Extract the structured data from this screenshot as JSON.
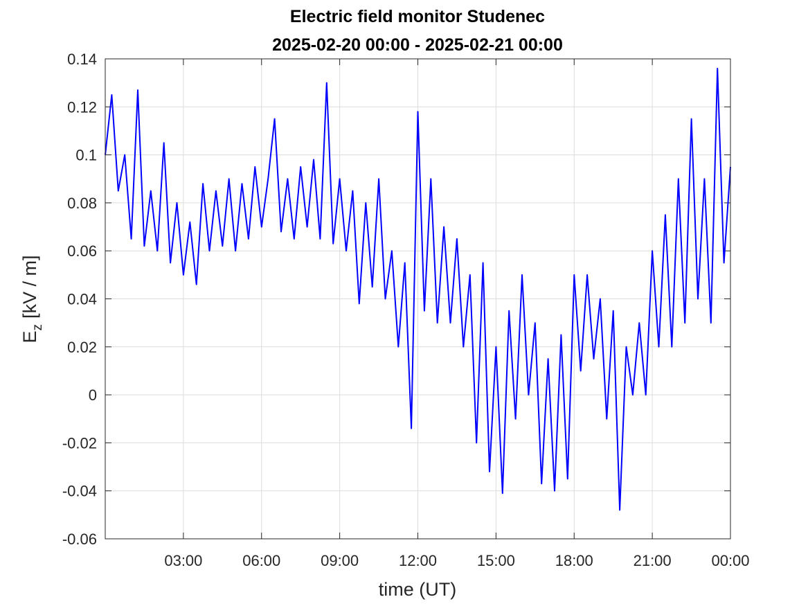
{
  "chart_data": {
    "type": "line",
    "title": "Electric field monitor Studenec",
    "subtitle": "2025-02-20 00:00 - 2025-02-21 00:00",
    "xlabel": "time (UT)",
    "ylabel": {
      "symbol": "E",
      "subscript": "z",
      "unit": "[kV / m]"
    },
    "x": [
      0,
      0.25,
      0.5,
      0.75,
      1,
      1.25,
      1.5,
      1.75,
      2,
      2.25,
      2.5,
      2.75,
      3,
      3.25,
      3.5,
      3.75,
      4,
      4.25,
      4.5,
      4.75,
      5,
      5.25,
      5.5,
      5.75,
      6,
      6.25,
      6.5,
      6.75,
      7,
      7.25,
      7.5,
      7.75,
      8,
      8.25,
      8.5,
      8.75,
      9,
      9.25,
      9.5,
      9.75,
      10,
      10.25,
      10.5,
      10.75,
      11,
      11.25,
      11.5,
      11.75,
      12,
      12.25,
      12.5,
      12.75,
      13,
      13.25,
      13.5,
      13.75,
      14,
      14.25,
      14.5,
      14.75,
      15,
      15.25,
      15.5,
      15.75,
      16,
      16.25,
      16.5,
      16.75,
      17,
      17.25,
      17.5,
      17.75,
      18,
      18.25,
      18.5,
      18.75,
      19,
      19.25,
      19.5,
      19.75,
      20,
      20.25,
      20.5,
      20.75,
      21,
      21.25,
      21.5,
      21.75,
      22,
      22.25,
      22.5,
      22.75,
      23,
      23.25,
      23.5,
      23.75,
      24
    ],
    "series": [
      {
        "name": "Ez",
        "color": "#0000ff",
        "values": [
          0.1,
          0.125,
          0.085,
          0.1,
          0.065,
          0.127,
          0.062,
          0.085,
          0.06,
          0.105,
          0.055,
          0.08,
          0.05,
          0.072,
          0.046,
          0.088,
          0.06,
          0.085,
          0.062,
          0.09,
          0.06,
          0.088,
          0.065,
          0.095,
          0.07,
          0.09,
          0.115,
          0.068,
          0.09,
          0.065,
          0.095,
          0.07,
          0.098,
          0.065,
          0.13,
          0.063,
          0.09,
          0.06,
          0.085,
          0.038,
          0.08,
          0.045,
          0.09,
          0.04,
          0.06,
          0.02,
          0.055,
          -0.014,
          0.118,
          0.035,
          0.09,
          0.03,
          0.07,
          0.03,
          0.065,
          0.02,
          0.05,
          -0.02,
          0.055,
          -0.032,
          0.02,
          -0.041,
          0.035,
          -0.01,
          0.05,
          0.0,
          0.03,
          -0.037,
          0.015,
          -0.04,
          0.025,
          -0.035,
          0.05,
          0.01,
          0.05,
          0.015,
          0.04,
          -0.01,
          0.035,
          -0.048,
          0.02,
          0.0,
          0.03,
          0.0,
          0.06,
          0.02,
          0.075,
          0.02,
          0.09,
          0.03,
          0.115,
          0.04,
          0.09,
          0.03,
          0.136,
          0.055,
          0.095
        ]
      }
    ],
    "xlim": [
      0,
      24
    ],
    "xticks": [
      {
        "value": 3,
        "label": "03:00"
      },
      {
        "value": 6,
        "label": "06:00"
      },
      {
        "value": 9,
        "label": "09:00"
      },
      {
        "value": 12,
        "label": "12:00"
      },
      {
        "value": 15,
        "label": "15:00"
      },
      {
        "value": 18,
        "label": "18:00"
      },
      {
        "value": 21,
        "label": "21:00"
      },
      {
        "value": 24,
        "label": "00:00"
      }
    ],
    "ylim": [
      -0.06,
      0.14
    ],
    "yticks": [
      -0.06,
      -0.04,
      -0.02,
      0,
      0.02,
      0.04,
      0.06,
      0.08,
      0.1,
      0.12,
      0.14
    ],
    "grid": true
  }
}
